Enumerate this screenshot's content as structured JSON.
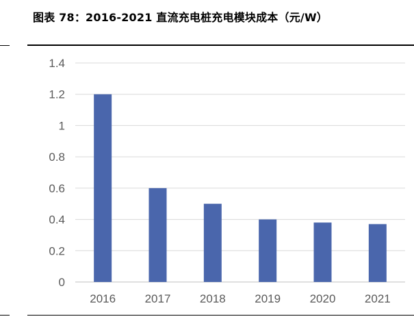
{
  "figure": {
    "title": "图表 78：2016-2021 直流充电桩充电模块成本（元/W）"
  },
  "chart_data": {
    "type": "bar",
    "categories": [
      "2016",
      "2017",
      "2018",
      "2019",
      "2020",
      "2021"
    ],
    "values": [
      1.2,
      0.6,
      0.5,
      0.4,
      0.38,
      0.37
    ],
    "title": "图表 78：2016-2021 直流充电桩充电模块成本（元/W）",
    "xlabel": "",
    "ylabel": "",
    "ylim": [
      0,
      1.4
    ],
    "yticks": [
      "0",
      "0.2",
      "0.4",
      "0.6",
      "0.8",
      "1",
      "1.2",
      "1.4"
    ],
    "grid": true,
    "legend": "none",
    "bar_color": "#4a66ac",
    "grid_color": "#d9d9d9",
    "tick_label_color": "#595959"
  }
}
